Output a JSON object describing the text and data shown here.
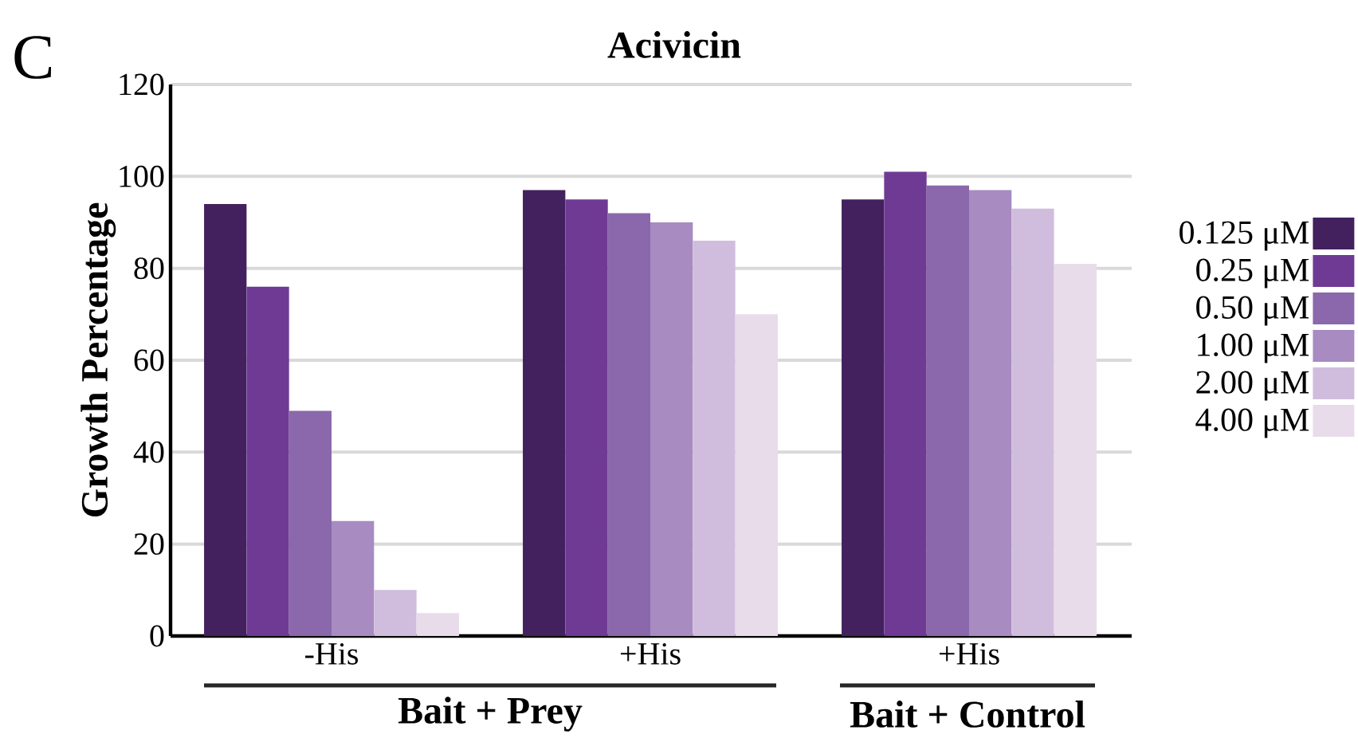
{
  "chart_data": {
    "type": "bar",
    "title": "Acivicin",
    "ylabel": "Growth Percentage",
    "categories": [
      "-His",
      "+His",
      "+His"
    ],
    "series": [
      {
        "name": "0.125 μM",
        "color": "#42215e",
        "values": [
          94,
          97,
          95
        ]
      },
      {
        "name": "0.25 μM",
        "color": "#6f3a94",
        "values": [
          76,
          95,
          101
        ]
      },
      {
        "name": "0.50 μM",
        "color": "#8a68ab",
        "values": [
          49,
          92,
          98
        ]
      },
      {
        "name": "1.00 μM",
        "color": "#a88bc1",
        "values": [
          25,
          90,
          97
        ]
      },
      {
        "name": "2.00 μM",
        "color": "#d0bddd",
        "values": [
          10,
          86,
          93
        ]
      },
      {
        "name": "4.00 μM",
        "color": "#e8dcea",
        "values": [
          5,
          70,
          81
        ]
      }
    ],
    "ylim": [
      0,
      120
    ],
    "yticks": [
      0,
      20,
      40,
      60,
      80,
      100,
      120
    ],
    "grid": "y",
    "legend": "right",
    "annotations": [
      "C",
      "Bait + Prey",
      "Bait + Control"
    ]
  }
}
